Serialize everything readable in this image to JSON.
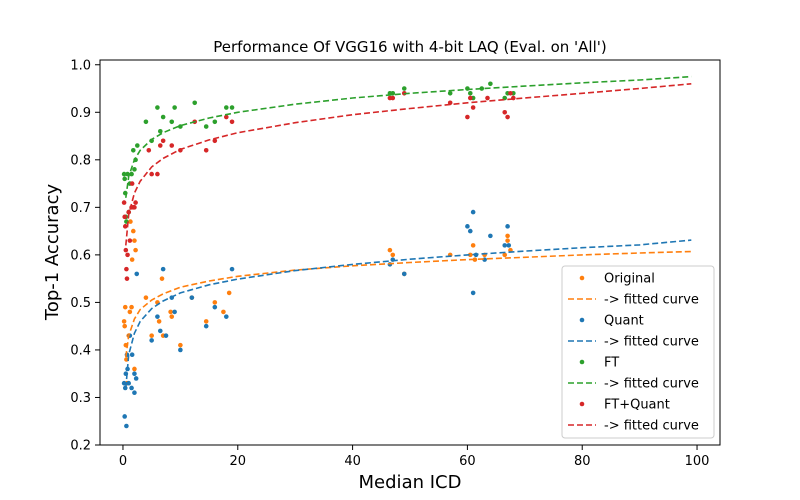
{
  "chart_data": {
    "type": "scatter",
    "title": "Performance Of VGG16 with 4-bit LAQ (Eval. on 'All')",
    "xlabel": "Median ICD",
    "ylabel": "Top-1 Accuracy",
    "xlim": [
      -4,
      104
    ],
    "ylim": [
      0.2,
      1.01
    ],
    "xticks": [
      "0",
      "20",
      "40",
      "60",
      "80",
      "100"
    ],
    "yticks": [
      "0.2",
      "0.3",
      "0.4",
      "0.5",
      "0.6",
      "0.7",
      "0.8",
      "0.9",
      "1.0"
    ],
    "legend_position": "lower-right",
    "grid": false,
    "series": [
      {
        "name": "Original",
        "color": "#ff7f0e",
        "points": [
          [
            0.2,
            0.46
          ],
          [
            0.3,
            0.45
          ],
          [
            0.4,
            0.49
          ],
          [
            0.5,
            0.41
          ],
          [
            0.6,
            0.38
          ],
          [
            0.7,
            0.33
          ],
          [
            1.0,
            0.43
          ],
          [
            1.2,
            0.48
          ],
          [
            1.3,
            0.67
          ],
          [
            1.5,
            0.49
          ],
          [
            1.6,
            0.59
          ],
          [
            1.8,
            0.65
          ],
          [
            2.0,
            0.36
          ],
          [
            2.0,
            0.63
          ],
          [
            2.2,
            0.61
          ],
          [
            4.0,
            0.51
          ],
          [
            5.0,
            0.43
          ],
          [
            6.0,
            0.5
          ],
          [
            6.3,
            0.46
          ],
          [
            6.8,
            0.55
          ],
          [
            7.0,
            0.43
          ],
          [
            8.3,
            0.48
          ],
          [
            8.5,
            0.47
          ],
          [
            10.0,
            0.41
          ],
          [
            12.0,
            0.51
          ],
          [
            14.5,
            0.46
          ],
          [
            16.0,
            0.5
          ],
          [
            17.5,
            0.48
          ],
          [
            18.5,
            0.52
          ],
          [
            46.5,
            0.61
          ],
          [
            47.0,
            0.6
          ],
          [
            49.0,
            0.56
          ],
          [
            57.0,
            0.6
          ],
          [
            60.5,
            0.6
          ],
          [
            61.0,
            0.62
          ],
          [
            61.3,
            0.59
          ],
          [
            63.0,
            0.6
          ],
          [
            66.5,
            0.6
          ],
          [
            67.0,
            0.64
          ],
          [
            67.0,
            0.63
          ],
          [
            67.5,
            0.61
          ]
        ]
      },
      {
        "name": "Quant",
        "color": "#1f77b4",
        "points": [
          [
            0.2,
            0.33
          ],
          [
            0.3,
            0.26
          ],
          [
            0.4,
            0.32
          ],
          [
            0.5,
            0.35
          ],
          [
            0.6,
            0.24
          ],
          [
            0.7,
            0.39
          ],
          [
            0.8,
            0.36
          ],
          [
            1.0,
            0.33
          ],
          [
            1.2,
            0.43
          ],
          [
            1.5,
            0.32
          ],
          [
            1.6,
            0.39
          ],
          [
            2.0,
            0.31
          ],
          [
            2.0,
            0.35
          ],
          [
            2.3,
            0.34
          ],
          [
            2.4,
            0.56
          ],
          [
            5.0,
            0.42
          ],
          [
            6.0,
            0.47
          ],
          [
            6.5,
            0.44
          ],
          [
            7.0,
            0.57
          ],
          [
            7.5,
            0.43
          ],
          [
            8.5,
            0.51
          ],
          [
            9.0,
            0.48
          ],
          [
            10.0,
            0.4
          ],
          [
            12.0,
            0.51
          ],
          [
            14.5,
            0.45
          ],
          [
            16.0,
            0.49
          ],
          [
            18.0,
            0.47
          ],
          [
            19.0,
            0.57
          ],
          [
            46.5,
            0.58
          ],
          [
            47.0,
            0.59
          ],
          [
            49.0,
            0.56
          ],
          [
            60.0,
            0.66
          ],
          [
            60.5,
            0.65
          ],
          [
            61.0,
            0.69
          ],
          [
            61.0,
            0.52
          ],
          [
            61.5,
            0.6
          ],
          [
            63.0,
            0.59
          ],
          [
            64.0,
            0.64
          ],
          [
            66.5,
            0.62
          ],
          [
            67.0,
            0.66
          ],
          [
            67.2,
            0.62
          ]
        ]
      },
      {
        "name": "FT",
        "color": "#2ca02c",
        "points": [
          [
            0.2,
            0.77
          ],
          [
            0.3,
            0.76
          ],
          [
            0.4,
            0.73
          ],
          [
            0.5,
            0.68
          ],
          [
            0.6,
            0.67
          ],
          [
            0.8,
            0.77
          ],
          [
            1.0,
            0.69
          ],
          [
            1.2,
            0.75
          ],
          [
            1.5,
            0.77
          ],
          [
            1.8,
            0.82
          ],
          [
            2.0,
            0.78
          ],
          [
            2.2,
            0.8
          ],
          [
            2.5,
            0.83
          ],
          [
            4.0,
            0.88
          ],
          [
            5.0,
            0.84
          ],
          [
            6.0,
            0.91
          ],
          [
            6.5,
            0.86
          ],
          [
            7.0,
            0.89
          ],
          [
            8.5,
            0.88
          ],
          [
            9.0,
            0.91
          ],
          [
            10.0,
            0.87
          ],
          [
            12.5,
            0.92
          ],
          [
            14.5,
            0.87
          ],
          [
            16.0,
            0.88
          ],
          [
            18.0,
            0.91
          ],
          [
            19.0,
            0.91
          ],
          [
            46.5,
            0.94
          ],
          [
            47.0,
            0.94
          ],
          [
            49.0,
            0.95
          ],
          [
            57.0,
            0.94
          ],
          [
            60.0,
            0.95
          ],
          [
            60.5,
            0.94
          ],
          [
            61.0,
            0.93
          ],
          [
            62.5,
            0.95
          ],
          [
            64.0,
            0.96
          ],
          [
            66.5,
            0.93
          ],
          [
            67.0,
            0.94
          ],
          [
            68.0,
            0.94
          ]
        ]
      },
      {
        "name": "FT+Quant",
        "color": "#d62728",
        "points": [
          [
            0.2,
            0.71
          ],
          [
            0.3,
            0.68
          ],
          [
            0.4,
            0.66
          ],
          [
            0.5,
            0.61
          ],
          [
            0.6,
            0.57
          ],
          [
            0.7,
            0.55
          ],
          [
            0.8,
            0.6
          ],
          [
            1.0,
            0.69
          ],
          [
            1.2,
            0.63
          ],
          [
            1.5,
            0.7
          ],
          [
            1.6,
            0.75
          ],
          [
            1.8,
            0.7
          ],
          [
            2.0,
            0.7
          ],
          [
            2.2,
            0.71
          ],
          [
            4.5,
            0.82
          ],
          [
            5.0,
            0.77
          ],
          [
            6.0,
            0.77
          ],
          [
            6.5,
            0.83
          ],
          [
            7.0,
            0.84
          ],
          [
            8.5,
            0.83
          ],
          [
            10.0,
            0.82
          ],
          [
            12.5,
            0.88
          ],
          [
            14.5,
            0.82
          ],
          [
            16.0,
            0.84
          ],
          [
            18.0,
            0.89
          ],
          [
            19.0,
            0.88
          ],
          [
            46.5,
            0.93
          ],
          [
            47.0,
            0.93
          ],
          [
            49.0,
            0.94
          ],
          [
            57.0,
            0.92
          ],
          [
            60.0,
            0.89
          ],
          [
            60.5,
            0.93
          ],
          [
            61.0,
            0.91
          ],
          [
            63.5,
            0.93
          ],
          [
            66.5,
            0.9
          ],
          [
            67.0,
            0.89
          ],
          [
            67.5,
            0.94
          ],
          [
            68.0,
            0.93
          ]
        ]
      }
    ],
    "fitted_curves": [
      {
        "name": "-> fitted curve",
        "color": "#ff7f0e",
        "x": [
          0.5,
          1,
          2,
          3,
          5,
          7,
          10,
          15,
          20,
          30,
          40,
          50,
          60,
          70,
          80,
          90,
          99
        ],
        "y": [
          0.385,
          0.43,
          0.465,
          0.485,
          0.505,
          0.518,
          0.532,
          0.545,
          0.555,
          0.568,
          0.577,
          0.584,
          0.59,
          0.595,
          0.6,
          0.604,
          0.607
        ]
      },
      {
        "name": "-> fitted curve",
        "color": "#1f77b4",
        "x": [
          0.5,
          1,
          2,
          3,
          5,
          7,
          10,
          15,
          20,
          30,
          40,
          50,
          60,
          70,
          80,
          90,
          99
        ],
        "y": [
          0.32,
          0.39,
          0.435,
          0.46,
          0.487,
          0.503,
          0.52,
          0.537,
          0.549,
          0.567,
          0.58,
          0.591,
          0.6,
          0.608,
          0.615,
          0.621,
          0.631
        ]
      },
      {
        "name": "-> fitted curve",
        "color": "#2ca02c",
        "x": [
          0.5,
          1,
          2,
          3,
          5,
          7,
          10,
          15,
          20,
          30,
          40,
          50,
          60,
          70,
          80,
          90,
          99
        ],
        "y": [
          0.72,
          0.765,
          0.8,
          0.82,
          0.843,
          0.857,
          0.872,
          0.888,
          0.9,
          0.917,
          0.93,
          0.94,
          0.948,
          0.955,
          0.962,
          0.968,
          0.975
        ]
      },
      {
        "name": "-> fitted curve",
        "color": "#d62728",
        "x": [
          0.5,
          1,
          2,
          3,
          5,
          7,
          10,
          15,
          20,
          30,
          40,
          50,
          60,
          70,
          80,
          90,
          99
        ],
        "y": [
          0.62,
          0.685,
          0.73,
          0.755,
          0.785,
          0.803,
          0.822,
          0.842,
          0.857,
          0.878,
          0.895,
          0.908,
          0.92,
          0.93,
          0.94,
          0.95,
          0.96
        ]
      }
    ],
    "legend": [
      {
        "label": "Original",
        "color": "#ff7f0e",
        "kind": "marker"
      },
      {
        "label": "-> fitted curve",
        "color": "#ff7f0e",
        "kind": "dashed-line"
      },
      {
        "label": "Quant",
        "color": "#1f77b4",
        "kind": "marker"
      },
      {
        "label": "-> fitted curve",
        "color": "#1f77b4",
        "kind": "dashed-line"
      },
      {
        "label": "FT",
        "color": "#2ca02c",
        "kind": "marker"
      },
      {
        "label": "-> fitted curve",
        "color": "#2ca02c",
        "kind": "dashed-line"
      },
      {
        "label": "FT+Quant",
        "color": "#d62728",
        "kind": "marker"
      },
      {
        "label": "-> fitted curve",
        "color": "#d62728",
        "kind": "dashed-line"
      }
    ]
  }
}
